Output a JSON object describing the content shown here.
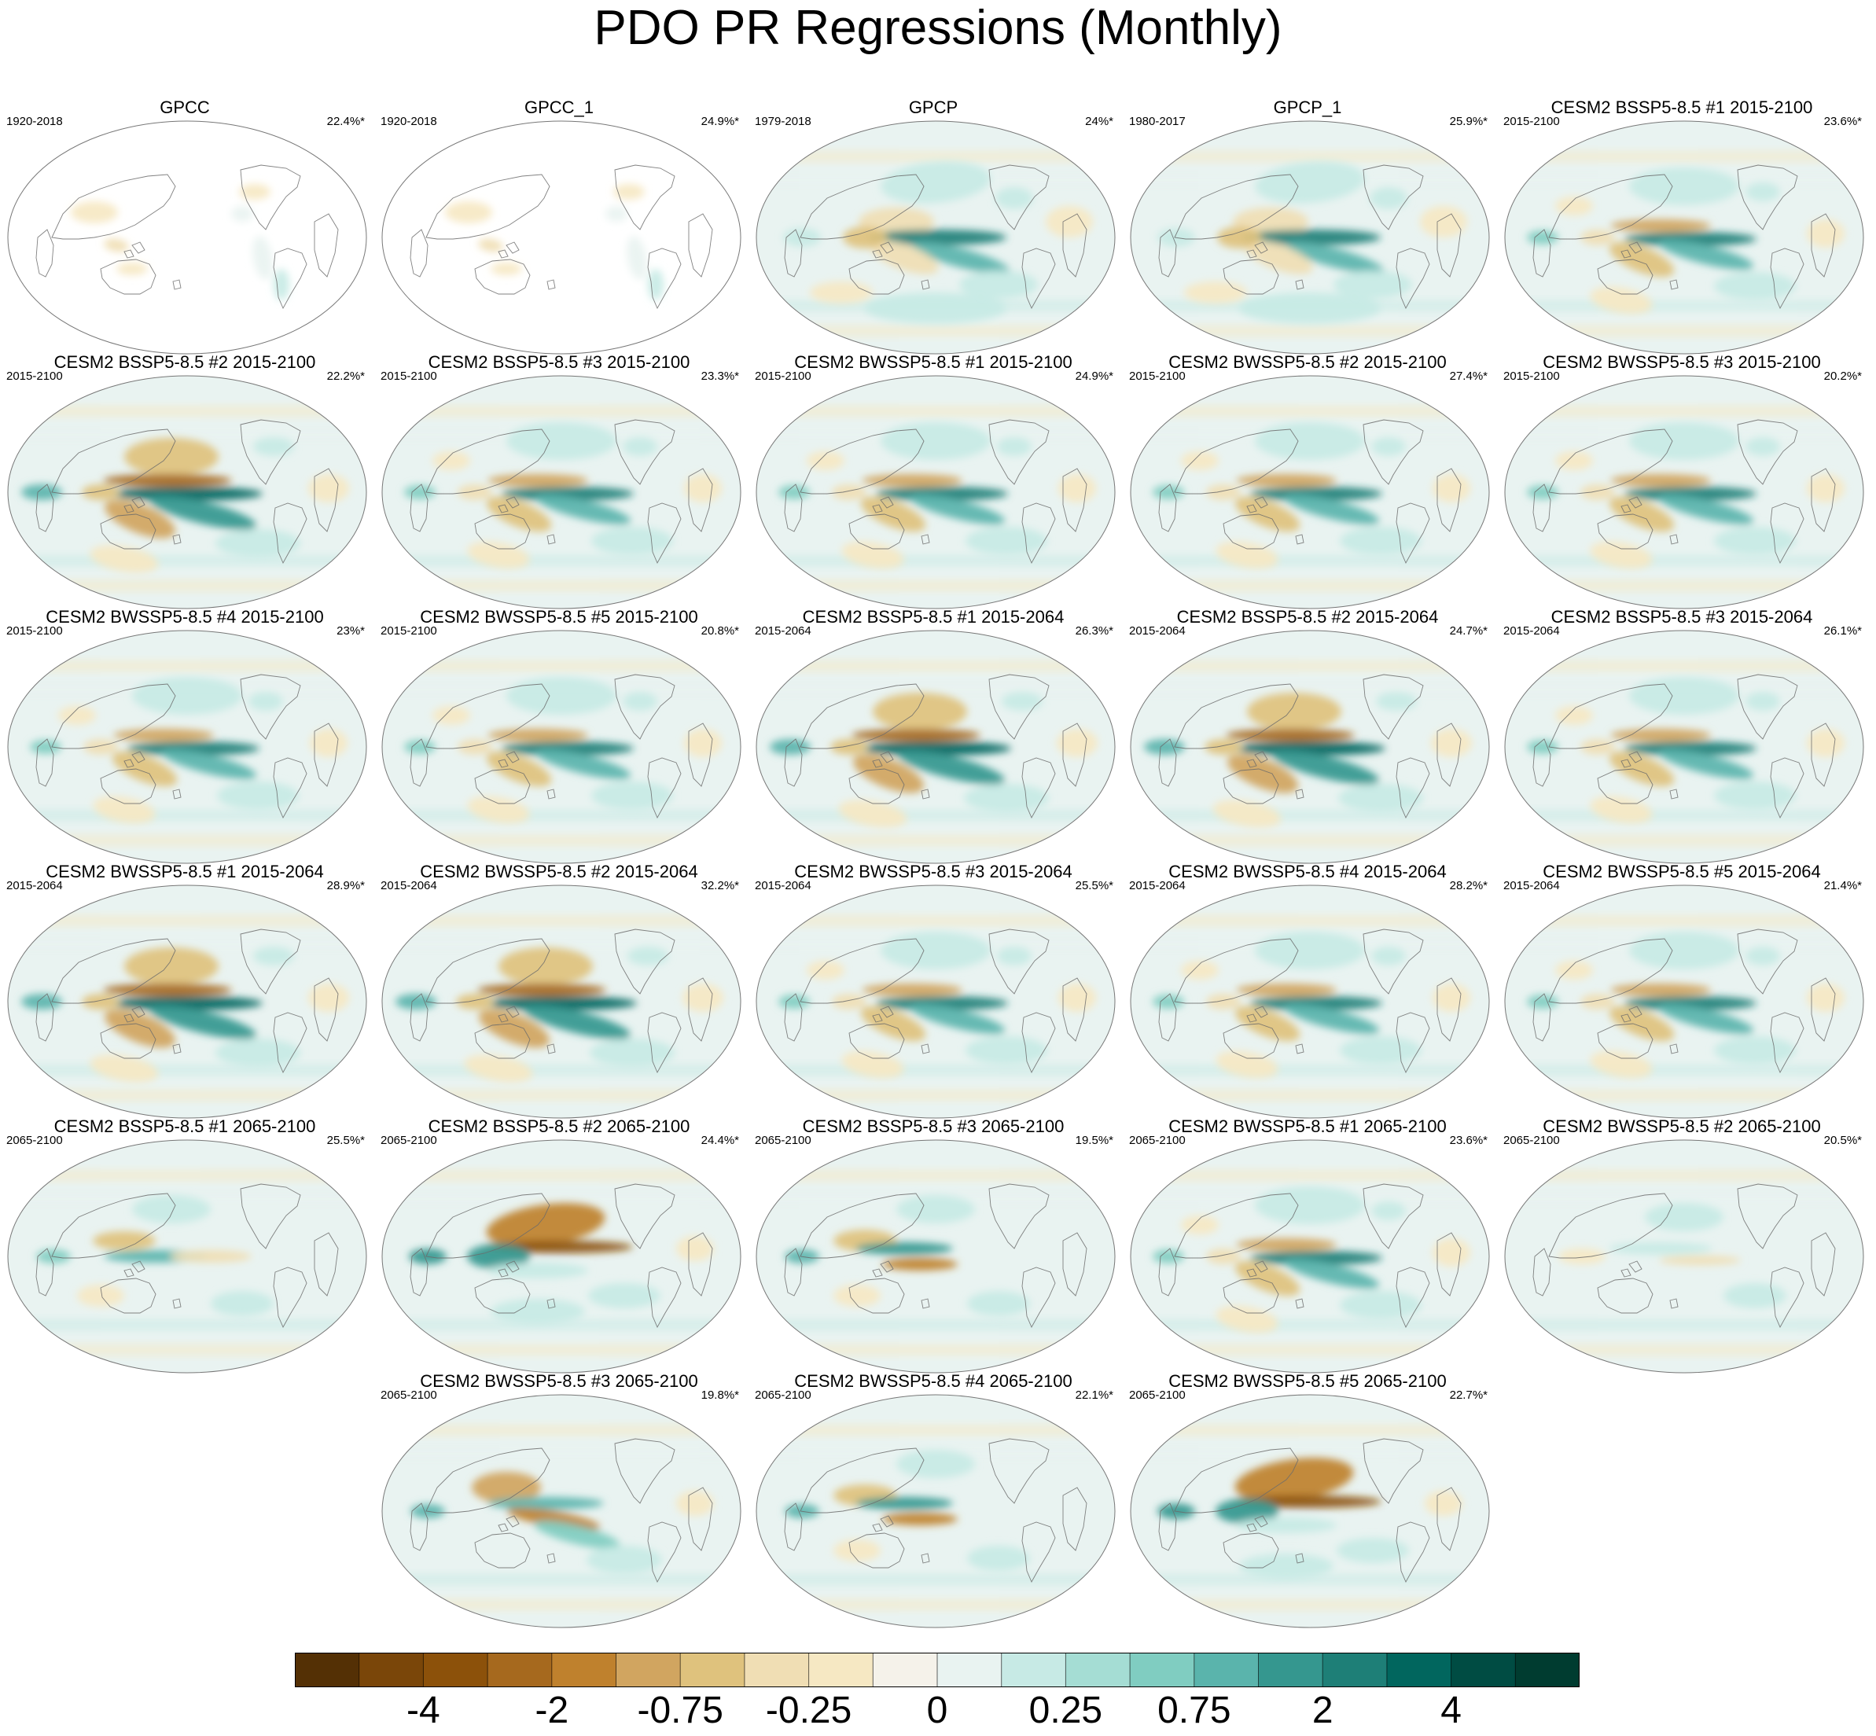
{
  "chart_data": {
    "type": "heatmap",
    "title": "PDO PR Regressions (Monthly)",
    "panels": [
      {
        "title": "GPCC",
        "period": "1920-2018",
        "pct": "22.4%*",
        "pattern": "obs_land"
      },
      {
        "title": "GPCC_1",
        "period": "1920-2018",
        "pct": "24.9%*",
        "pattern": "obs_land"
      },
      {
        "title": "GPCP",
        "period": "1979-2018",
        "pct": "24%*",
        "pattern": "obs"
      },
      {
        "title": "GPCP_1",
        "period": "1980-2017",
        "pct": "25.9%*",
        "pattern": "obs"
      },
      {
        "title": "CESM2 BSSP5-8.5 #1 2015-2100",
        "period": "2015-2100",
        "pct": "23.6%*",
        "pattern": "model"
      },
      {
        "title": "CESM2 BSSP5-8.5 #2 2015-2100",
        "period": "2015-2100",
        "pct": "22.2%*",
        "pattern": "model_strong"
      },
      {
        "title": "CESM2 BSSP5-8.5 #3 2015-2100",
        "period": "2015-2100",
        "pct": "23.3%*",
        "pattern": "model"
      },
      {
        "title": "CESM2 BWSSP5-8.5 #1 2015-2100",
        "period": "2015-2100",
        "pct": "24.9%*",
        "pattern": "model"
      },
      {
        "title": "CESM2 BWSSP5-8.5 #2 2015-2100",
        "period": "2015-2100",
        "pct": "27.4%*",
        "pattern": "model"
      },
      {
        "title": "CESM2 BWSSP5-8.5 #3 2015-2100",
        "period": "2015-2100",
        "pct": "20.2%*",
        "pattern": "model"
      },
      {
        "title": "CESM2 BWSSP5-8.5 #4 2015-2100",
        "period": "2015-2100",
        "pct": "23%*",
        "pattern": "model"
      },
      {
        "title": "CESM2 BWSSP5-8.5 #5 2015-2100",
        "period": "2015-2100",
        "pct": "20.8%*",
        "pattern": "model"
      },
      {
        "title": "CESM2 BSSP5-8.5 #1 2015-2064",
        "period": "2015-2064",
        "pct": "26.3%*",
        "pattern": "model_strong"
      },
      {
        "title": "CESM2 BSSP5-8.5 #2 2015-2064",
        "period": "2015-2064",
        "pct": "24.7%*",
        "pattern": "model_strong"
      },
      {
        "title": "CESM2 BSSP5-8.5 #3 2015-2064",
        "period": "2015-2064",
        "pct": "26.1%*",
        "pattern": "model"
      },
      {
        "title": "CESM2 BWSSP5-8.5 #1 2015-2064",
        "period": "2015-2064",
        "pct": "28.9%*",
        "pattern": "model_strong"
      },
      {
        "title": "CESM2 BWSSP5-8.5 #2 2015-2064",
        "period": "2015-2064",
        "pct": "32.2%*",
        "pattern": "model_strong"
      },
      {
        "title": "CESM2 BWSSP5-8.5 #3 2015-2064",
        "period": "2015-2064",
        "pct": "25.5%*",
        "pattern": "model"
      },
      {
        "title": "CESM2 BWSSP5-8.5 #4 2015-2064",
        "period": "2015-2064",
        "pct": "28.2%*",
        "pattern": "model"
      },
      {
        "title": "CESM2 BWSSP5-8.5 #5 2015-2064",
        "period": "2015-2064",
        "pct": "21.4%*",
        "pattern": "model"
      },
      {
        "title": "CESM2 BSSP5-8.5 #1 2065-2100",
        "period": "2065-2100",
        "pct": "25.5%*",
        "pattern": "weak"
      },
      {
        "title": "CESM2 BSSP5-8.5 #2 2065-2100",
        "period": "2065-2100",
        "pct": "24.4%*",
        "pattern": "inverted"
      },
      {
        "title": "CESM2 BSSP5-8.5 #3 2065-2100",
        "period": "2065-2100",
        "pct": "19.5%*",
        "pattern": "weak_inverted"
      },
      {
        "title": "CESM2 BWSSP5-8.5 #1 2065-2100",
        "period": "2065-2100",
        "pct": "23.6%*",
        "pattern": "model"
      },
      {
        "title": "CESM2 BWSSP5-8.5 #2 2065-2100",
        "period": "2065-2100",
        "pct": "20.5%*",
        "pattern": "faint"
      },
      {
        "title": "CESM2 BWSSP5-8.5 #3 2065-2100",
        "period": "2065-2100",
        "pct": "19.8%*",
        "pattern": "model_south"
      },
      {
        "title": "CESM2 BWSSP5-8.5 #4 2065-2100",
        "period": "2065-2100",
        "pct": "22.1%*",
        "pattern": "weak_inverted"
      },
      {
        "title": "CESM2 BWSSP5-8.5 #5 2065-2100",
        "period": "2065-2100",
        "pct": "22.7%*",
        "pattern": "inverted"
      }
    ],
    "colorbar": {
      "colors": [
        "#543005",
        "#7a4609",
        "#8c510a",
        "#a6691e",
        "#bf812d",
        "#d1a560",
        "#dfc27d",
        "#f0deb4",
        "#f6e8c3",
        "#f5f2ea",
        "#e9f3f1",
        "#c7eae5",
        "#a5ddd4",
        "#80cdc1",
        "#5ab4ac",
        "#35978f",
        "#1e7f77",
        "#01665e",
        "#004c43",
        "#003c30"
      ],
      "tick_labels": [
        "-4",
        "-2",
        "-0.75",
        "-0.25",
        "0",
        "0.25",
        "0.75",
        "2",
        "4"
      ]
    }
  }
}
